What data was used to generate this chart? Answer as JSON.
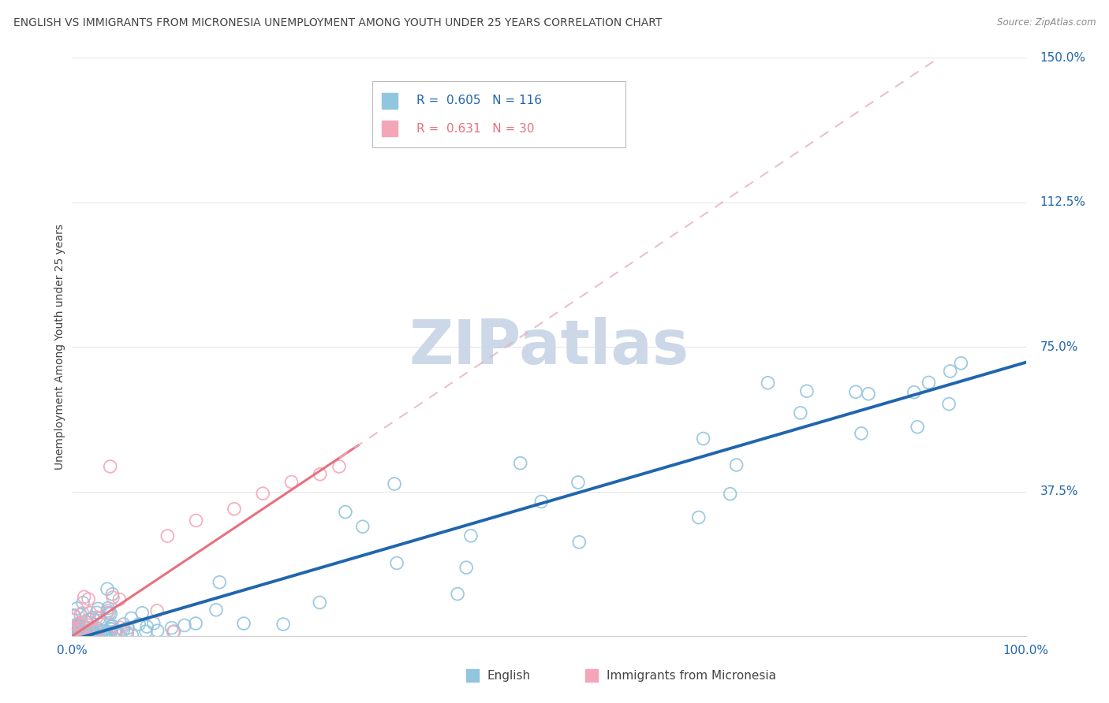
{
  "title": "ENGLISH VS IMMIGRANTS FROM MICRONESIA UNEMPLOYMENT AMONG YOUTH UNDER 25 YEARS CORRELATION CHART",
  "source": "Source: ZipAtlas.com",
  "ylabel": "Unemployment Among Youth under 25 years",
  "xlim": [
    0.0,
    1.0
  ],
  "ylim": [
    0.0,
    1.5
  ],
  "yticks": [
    0.0,
    0.375,
    0.75,
    1.125,
    1.5
  ],
  "ytick_labels": [
    "",
    "37.5%",
    "75.0%",
    "112.5%",
    "150.0%"
  ],
  "english_R": 0.605,
  "english_N": 116,
  "micronesia_R": 0.631,
  "micronesia_N": 30,
  "english_color": "#92c5de",
  "micronesia_color": "#f4a6b8",
  "english_line_color": "#2166ac",
  "micronesia_line_color": "#e8707e",
  "micronesia_dash_color": "#e8b0b8",
  "watermark": "ZIPatlas",
  "watermark_color": "#ccd8e8",
  "grid_color": "#e8e8e8",
  "title_color": "#444444",
  "axis_label_color": "#2166ac",
  "source_color": "#888888",
  "background_color": "#ffffff",
  "legend_edge_color": "#bbbbbb"
}
